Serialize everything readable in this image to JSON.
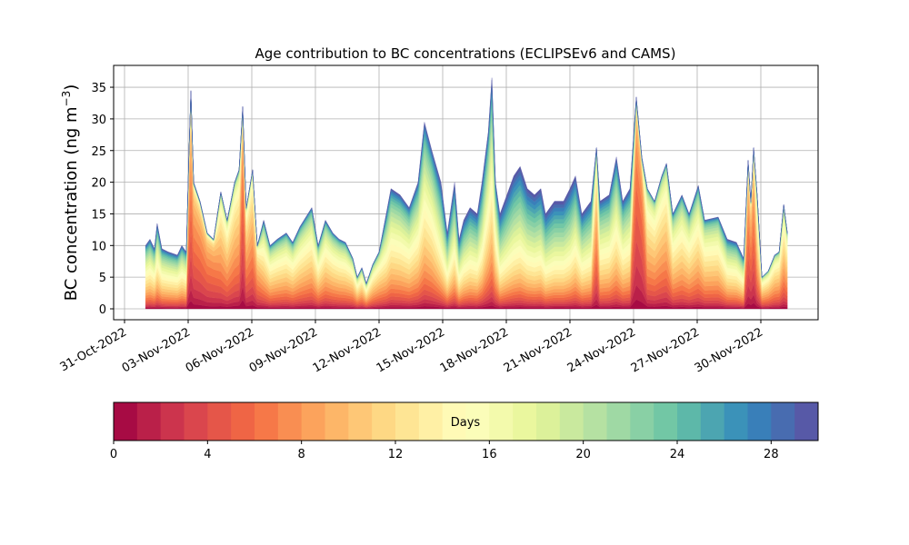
{
  "chart_data": {
    "type": "area",
    "stacked": true,
    "title": "Age contribution to BC concentrations (ECLIPSEv6 and CAMS)",
    "xlabel": "",
    "ylabel_main": "BC concentration (ng m",
    "ylabel_sup": "−3",
    "ylabel_close": ")",
    "ylim": [
      -2,
      38.5
    ],
    "xlim_days_since_31oct": [
      -0.5,
      32.7
    ],
    "grid": true,
    "x_ticks": [
      {
        "day": 0,
        "label": "31-Oct-2022"
      },
      {
        "day": 3,
        "label": "03-Nov-2022"
      },
      {
        "day": 6,
        "label": "06-Nov-2022"
      },
      {
        "day": 9,
        "label": "09-Nov-2022"
      },
      {
        "day": 12,
        "label": "12-Nov-2022"
      },
      {
        "day": 15,
        "label": "15-Nov-2022"
      },
      {
        "day": 18,
        "label": "18-Nov-2022"
      },
      {
        "day": 21,
        "label": "21-Nov-2022"
      },
      {
        "day": 24,
        "label": "24-Nov-2022"
      },
      {
        "day": 27,
        "label": "27-Nov-2022"
      },
      {
        "day": 30,
        "label": "30-Nov-2022"
      }
    ],
    "y_ticks": [
      "0",
      "5",
      "10",
      "15",
      "20",
      "25",
      "30",
      "35"
    ],
    "x_days": [
      0.99,
      1.2,
      1.41,
      1.54,
      1.76,
      2.06,
      2.49,
      2.7,
      2.91,
      3.04,
      3.13,
      3.26,
      3.56,
      3.9,
      4.2,
      4.54,
      4.84,
      5.19,
      5.4,
      5.57,
      5.74,
      6.04,
      6.26,
      6.56,
      6.86,
      7.2,
      7.63,
      7.93,
      8.27,
      8.83,
      9.13,
      9.47,
      9.82,
      10.12,
      10.42,
      10.76,
      10.97,
      11.19,
      11.4,
      11.7,
      12.0,
      12.34,
      12.56,
      12.99,
      13.42,
      13.84,
      14.14,
      14.49,
      14.92,
      15.22,
      15.56,
      15.77,
      15.99,
      16.29,
      16.63,
      16.85,
      17.15,
      17.32,
      17.49,
      17.7,
      17.92,
      18.35,
      18.65,
      18.99,
      19.33,
      19.63,
      19.85,
      20.27,
      20.7,
      21.0,
      21.26,
      21.56,
      21.99,
      22.25,
      22.42,
      22.85,
      23.19,
      23.49,
      23.83,
      24.13,
      24.39,
      24.65,
      24.99,
      25.33,
      25.55,
      25.85,
      26.28,
      26.62,
      27.05,
      27.35,
      27.99,
      28.42,
      28.85,
      29.19,
      29.4,
      29.53,
      29.66,
      29.83,
      30.05,
      30.35,
      30.65,
      30.86,
      31.08,
      31.25
    ],
    "total": [
      10,
      11,
      9.5,
      13.5,
      9.5,
      9,
      8.5,
      10,
      9,
      25,
      34.5,
      20,
      17,
      12,
      11,
      18.5,
      14,
      20,
      22,
      32,
      16,
      22,
      10,
      14,
      10,
      11,
      12,
      10.5,
      13,
      16,
      10,
      14,
      12,
      11,
      10.5,
      8,
      5,
      6.5,
      4,
      7,
      9,
      15,
      19,
      18,
      16,
      20,
      29.5,
      25,
      20,
      12,
      20,
      11,
      14,
      16,
      15,
      20,
      28,
      36.5,
      20,
      15,
      17,
      21,
      22.5,
      19,
      18,
      19,
      15,
      17,
      17,
      19,
      21,
      15,
      17,
      25.5,
      17,
      18,
      24,
      17,
      19,
      33.5,
      24,
      19,
      17,
      21,
      23,
      15,
      18,
      15,
      19.5,
      14,
      14.5,
      11,
      10.5,
      8,
      23.5,
      17,
      25.5,
      18,
      5,
      6,
      8.5,
      9,
      16.5,
      12
    ],
    "mean_age_days": [
      14,
      14,
      14,
      14,
      14,
      14,
      14,
      14,
      14,
      6,
      6,
      6,
      6,
      6,
      6,
      9,
      9,
      9,
      9,
      5,
      8,
      8,
      8,
      12,
      12,
      12,
      12,
      12,
      12,
      12,
      12,
      12,
      12,
      12,
      12,
      11,
      11,
      11,
      11,
      11,
      11,
      14,
      14,
      14,
      14,
      14,
      14,
      14,
      17,
      17,
      17,
      17,
      17,
      17,
      17,
      17,
      14,
      14,
      14,
      19,
      19,
      19,
      19,
      19,
      19,
      19,
      19,
      19,
      19,
      19,
      17,
      17,
      17,
      8,
      15,
      15,
      15,
      15,
      15,
      5,
      5,
      10,
      10,
      10,
      10,
      12,
      12,
      12,
      12,
      12,
      12,
      14,
      14,
      14,
      6,
      6,
      6,
      10,
      10,
      10,
      10,
      10,
      10,
      10
    ],
    "age_bins": 30,
    "colorbar": {
      "label": "Days",
      "range": [
        0,
        30
      ],
      "ticks": [
        "0",
        "4",
        "8",
        "12",
        "16",
        "20",
        "24",
        "28"
      ],
      "colormap": [
        "#9e0142",
        "#d53e4f",
        "#f46d43",
        "#fdae61",
        "#fee08b",
        "#ffffbf",
        "#e6f598",
        "#abdda4",
        "#66c2a5",
        "#3288bd",
        "#5e4fa2"
      ]
    }
  }
}
